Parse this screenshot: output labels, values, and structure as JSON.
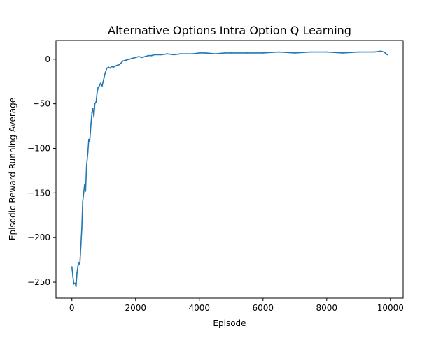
{
  "chart_data": {
    "type": "line",
    "title": "Alternative Options Intra Option Q Learning",
    "xlabel": "Episode",
    "ylabel": "Episodic Reward Running Average",
    "xlim": [
      -500,
      10400
    ],
    "ylim": [
      -268,
      21
    ],
    "xticks": [
      0,
      2000,
      4000,
      6000,
      8000,
      10000
    ],
    "yticks": [
      -250,
      -200,
      -150,
      -100,
      -50,
      0
    ],
    "xtick_labels": [
      "0",
      "2000",
      "4000",
      "6000",
      "8000",
      "10000"
    ],
    "ytick_labels": [
      "−250",
      "−200",
      "−150",
      "−100",
      "−50",
      "0"
    ],
    "grid": false,
    "legend": "none",
    "series": [
      {
        "color": "#1f77b4",
        "x": [
          0,
          30,
          60,
          100,
          130,
          160,
          190,
          220,
          250,
          280,
          310,
          340,
          370,
          400,
          430,
          460,
          500,
          530,
          560,
          600,
          630,
          660,
          690,
          720,
          760,
          790,
          820,
          860,
          900,
          950,
          1000,
          1050,
          1100,
          1150,
          1200,
          1250,
          1300,
          1400,
          1500,
          1550,
          1600,
          1700,
          1800,
          1900,
          2000,
          2100,
          2200,
          2300,
          2400,
          2500,
          2600,
          2800,
          3000,
          3200,
          3400,
          3600,
          3800,
          4000,
          4200,
          4500,
          4800,
          5000,
          5500,
          6000,
          6500,
          7000,
          7500,
          8000,
          8500,
          9000,
          9500,
          9700,
          9800,
          9900
        ],
        "y": [
          -233,
          -243,
          -252,
          -251,
          -255,
          -240,
          -232,
          -228,
          -230,
          -210,
          -190,
          -160,
          -150,
          -140,
          -148,
          -120,
          -105,
          -90,
          -92,
          -72,
          -60,
          -55,
          -65,
          -50,
          -48,
          -38,
          -32,
          -30,
          -27,
          -30,
          -22,
          -15,
          -10,
          -9,
          -10,
          -8,
          -9,
          -7,
          -6,
          -4,
          -2,
          -1,
          0,
          1,
          2,
          3,
          2,
          3,
          4,
          4,
          5,
          5,
          6,
          5,
          6,
          6,
          6,
          7,
          7,
          6,
          7,
          7,
          7,
          7,
          8,
          7,
          8,
          8,
          7,
          8,
          8,
          9,
          8,
          5
        ]
      }
    ]
  }
}
